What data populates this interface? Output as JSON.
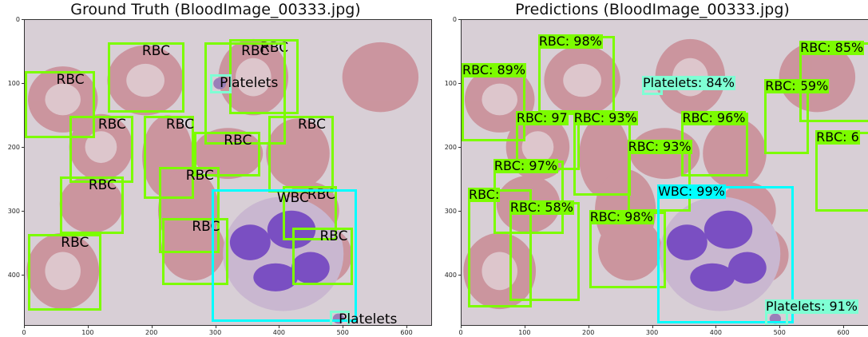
{
  "colors": {
    "rbc": "#7CFC00",
    "wbc": "#00FFFF",
    "platelets": "#7FFFD4"
  },
  "left": {
    "title": "Ground Truth (BloodImage_00333.jpg)",
    "boxes": [
      {
        "cls": "rbc",
        "label": "RBC",
        "b": [
          0,
          80,
          110,
          185
        ]
      },
      {
        "cls": "rbc",
        "label": "RBC",
        "b": [
          130,
          35,
          250,
          145
        ]
      },
      {
        "cls": "rbc",
        "label": "RBC",
        "b": [
          320,
          30,
          430,
          148
        ]
      },
      {
        "cls": "rbc",
        "label": "RBC",
        "b": [
          382,
          150,
          485,
          270
        ]
      },
      {
        "cls": "rbc",
        "label": "RBC",
        "b": [
          282,
          35,
          410,
          195
        ]
      },
      {
        "cls": "rbc",
        "label": "RBC",
        "b": [
          70,
          150,
          170,
          255
        ]
      },
      {
        "cls": "rbc",
        "label": "RBC",
        "b": [
          186,
          150,
          265,
          280
        ]
      },
      {
        "cls": "rbc",
        "label": "RBC",
        "b": [
          265,
          175,
          370,
          245
        ]
      },
      {
        "cls": "rbc",
        "label": "RBC",
        "b": [
          55,
          245,
          155,
          335
        ]
      },
      {
        "cls": "rbc",
        "label": "RBC",
        "b": [
          210,
          230,
          305,
          365
        ]
      },
      {
        "cls": "rbc",
        "label": "RBC",
        "b": [
          5,
          335,
          120,
          455
        ]
      },
      {
        "cls": "rbc",
        "label": "RBC",
        "b": [
          215,
          310,
          320,
          415
        ]
      },
      {
        "cls": "rbc",
        "label": "RBC",
        "b": [
          405,
          260,
          490,
          345
        ]
      },
      {
        "cls": "rbc",
        "label": "RBC",
        "b": [
          420,
          325,
          515,
          415
        ]
      },
      {
        "cls": "wbc",
        "label": "WBC",
        "b": [
          293,
          265,
          521,
          473
        ]
      },
      {
        "cls": "platelets",
        "label": "Platelets",
        "b": [
          290,
          85,
          325,
          115
        ]
      },
      {
        "cls": "platelets",
        "label": "Platelets",
        "b": [
          478,
          455,
          510,
          483
        ]
      }
    ]
  },
  "right": {
    "title": "Predictions (BloodImage_00333.jpg)",
    "boxes": [
      {
        "cls": "rbc",
        "label": "RBC: 89%",
        "b": [
          0,
          70,
          100,
          190
        ]
      },
      {
        "cls": "rbc",
        "label": "RBC: 98%",
        "b": [
          120,
          25,
          240,
          145
        ]
      },
      {
        "cls": "platelets",
        "label": "Platelets: 84%",
        "b": [
          283,
          90,
          315,
          118
        ]
      },
      {
        "cls": "rbc",
        "label": "RBC: 59%",
        "b": [
          475,
          95,
          545,
          210
        ]
      },
      {
        "cls": "rbc",
        "label": "RBC: 85%",
        "b": [
          530,
          35,
          645,
          160
        ]
      },
      {
        "cls": "rbc",
        "label": "RBC: 97",
        "b": [
          85,
          145,
          185,
          235
        ]
      },
      {
        "cls": "rbc",
        "label": "RBC: 93%",
        "b": [
          175,
          145,
          265,
          275
        ]
      },
      {
        "cls": "rbc",
        "label": "RBC: 96%",
        "b": [
          345,
          145,
          450,
          245
        ]
      },
      {
        "cls": "rbc",
        "label": "RBC: 93%",
        "b": [
          260,
          190,
          360,
          300
        ]
      },
      {
        "cls": "rbc",
        "label": "RBC: 6",
        "b": [
          555,
          175,
          645,
          300
        ]
      },
      {
        "cls": "rbc",
        "label": "RBC: 97%",
        "b": [
          50,
          220,
          160,
          335
        ]
      },
      {
        "cls": "rbc",
        "label": "RBC: 98%",
        "b": [
          200,
          300,
          320,
          420
        ]
      },
      {
        "cls": "rbc",
        "label": "RBC: ",
        "b": [
          10,
          265,
          110,
          450
        ]
      },
      {
        "cls": "rbc",
        "label": "RBC: 58%",
        "b": [
          75,
          285,
          185,
          440
        ]
      },
      {
        "cls": "wbc",
        "label": "WBC: 99%",
        "b": [
          307,
          260,
          521,
          475
        ]
      },
      {
        "cls": "platelets",
        "label": "Platelets: 91%",
        "b": [
          476,
          440,
          512,
          480
        ]
      }
    ]
  },
  "axes": {
    "xticks": [
      "0",
      "100",
      "200",
      "300",
      "400",
      "500",
      "600"
    ],
    "yticks": [
      "0",
      "100",
      "200",
      "300",
      "400"
    ]
  }
}
